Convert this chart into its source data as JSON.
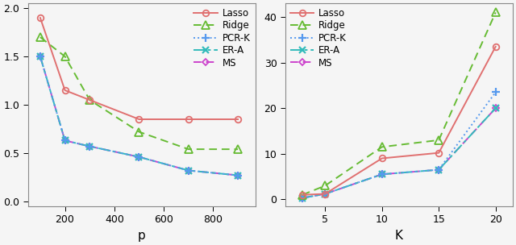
{
  "left": {
    "x": [
      100,
      200,
      300,
      500,
      700,
      900
    ],
    "lasso": [
      1.9,
      1.15,
      1.05,
      0.85,
      0.85,
      0.85
    ],
    "ridge": [
      1.7,
      1.5,
      1.05,
      0.72,
      0.54,
      0.54
    ],
    "pcrk": [
      1.5,
      0.63,
      0.57,
      0.46,
      0.32,
      0.27
    ],
    "era": [
      1.5,
      0.63,
      0.57,
      0.46,
      0.32,
      0.27
    ],
    "ms": [
      1.5,
      0.63,
      0.57,
      0.46,
      0.32,
      0.27
    ],
    "xlabel": "p",
    "ylim": [
      -0.05,
      2.05
    ],
    "yticks": [
      0.0,
      0.5,
      1.0,
      1.5,
      2.0
    ],
    "xlim": [
      50,
      970
    ],
    "xticks": [
      200,
      400,
      600,
      800
    ]
  },
  "right": {
    "x": [
      3,
      5,
      10,
      15,
      20
    ],
    "lasso": [
      1.0,
      1.2,
      9.0,
      10.2,
      33.5
    ],
    "ridge": [
      1.0,
      3.0,
      11.5,
      13.0,
      41.0
    ],
    "pcrk": [
      0.3,
      1.2,
      5.5,
      6.5,
      23.5
    ],
    "era": [
      0.3,
      1.2,
      5.5,
      6.5,
      20.0
    ],
    "ms": [
      0.3,
      1.2,
      5.5,
      6.5,
      20.0
    ],
    "xlabel": "K",
    "ylim": [
      -1.5,
      43
    ],
    "yticks": [
      0,
      10,
      20,
      30,
      40
    ],
    "xlim": [
      1.5,
      21.5
    ],
    "xticks": [
      5,
      10,
      15,
      20
    ]
  },
  "lasso_color": "#e07070",
  "ridge_color": "#66bb33",
  "pcrk_color": "#5599ee",
  "era_color": "#33bbbb",
  "ms_color": "#cc44cc",
  "bg_color": "#f5f5f5",
  "legend_labels": [
    "Lasso",
    "Ridge",
    "PCR-K",
    "ER-A",
    "MS"
  ]
}
